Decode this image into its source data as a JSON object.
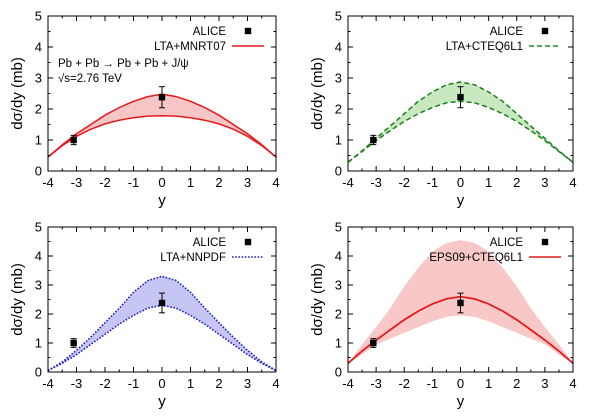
{
  "chart_data": [
    {
      "type": "line",
      "xlabel": "y",
      "ylabel": "dσ/dy (mb)",
      "xlim": [
        -4,
        4
      ],
      "ylim": [
        0,
        5
      ],
      "xticks": [
        "-4",
        "-3",
        "-2",
        "-1",
        "0",
        "1",
        "2",
        "3",
        "4"
      ],
      "yticks": [
        "0",
        "1",
        "2",
        "3",
        "4",
        "5"
      ],
      "legend_position": "top-right",
      "legend": [
        {
          "label": "ALICE",
          "kind": "marker",
          "color": "#000000"
        },
        {
          "label": "LTA+MNRT07",
          "kind": "solid",
          "color": "#e41a1c"
        }
      ],
      "annotations": [
        "Pb + Pb → Pb + Pb + J/ψ",
        "√s=2.76 TeV"
      ],
      "data_points": {
        "name": "ALICE",
        "x": [
          -3.1,
          0
        ],
        "y": [
          1.0,
          2.38
        ],
        "yerr": [
          0.15,
          0.34
        ]
      },
      "band": {
        "style": "solid",
        "color": "#e41a1c",
        "fill": "#f6c6c6",
        "x": [
          -4,
          -3.5,
          -3,
          -2.5,
          -2,
          -1.5,
          -1,
          -0.5,
          0,
          0.5,
          1,
          1.5,
          2,
          2.5,
          3,
          3.5,
          4
        ],
        "lower": [
          0.45,
          0.82,
          1.12,
          1.35,
          1.52,
          1.64,
          1.72,
          1.77,
          1.78,
          1.77,
          1.72,
          1.64,
          1.52,
          1.35,
          1.12,
          0.82,
          0.45
        ],
        "upper": [
          0.45,
          0.85,
          1.2,
          1.5,
          1.8,
          2.05,
          2.25,
          2.4,
          2.48,
          2.4,
          2.25,
          2.05,
          1.8,
          1.5,
          1.2,
          0.85,
          0.45
        ]
      }
    },
    {
      "type": "line",
      "xlabel": "y",
      "ylabel": "dσ/dy (mb)",
      "xlim": [
        -4,
        4
      ],
      "ylim": [
        0,
        5
      ],
      "xticks": [
        "-4",
        "-3",
        "-2",
        "-1",
        "0",
        "1",
        "2",
        "3",
        "4"
      ],
      "yticks": [
        "0",
        "1",
        "2",
        "3",
        "4",
        "5"
      ],
      "legend_position": "top-right",
      "legend": [
        {
          "label": "ALICE",
          "kind": "marker",
          "color": "#000000"
        },
        {
          "label": "LTA+CTEQ6L1",
          "kind": "dashed",
          "color": "#228b22"
        }
      ],
      "annotations": [],
      "data_points": {
        "name": "ALICE",
        "x": [
          -3.1,
          0
        ],
        "y": [
          1.0,
          2.38
        ],
        "yerr": [
          0.15,
          0.34
        ]
      },
      "band": {
        "style": "dashed",
        "color": "#1a7f1a",
        "fill": "#c8e8c0",
        "x": [
          -4,
          -3.5,
          -3,
          -2.5,
          -2,
          -1.5,
          -1,
          -0.5,
          0,
          0.5,
          1,
          1.5,
          2,
          2.5,
          3,
          3.5,
          4
        ],
        "lower": [
          0.28,
          0.63,
          0.98,
          1.3,
          1.6,
          1.85,
          2.05,
          2.2,
          2.25,
          2.2,
          2.05,
          1.85,
          1.6,
          1.3,
          0.98,
          0.63,
          0.28
        ],
        "upper": [
          0.28,
          0.65,
          1.05,
          1.45,
          1.85,
          2.25,
          2.55,
          2.78,
          2.87,
          2.78,
          2.55,
          2.25,
          1.85,
          1.45,
          1.05,
          0.65,
          0.28
        ]
      }
    },
    {
      "type": "line",
      "xlabel": "y",
      "ylabel": "dσ/dy (mb)",
      "xlim": [
        -4,
        4
      ],
      "ylim": [
        0,
        5
      ],
      "xticks": [
        "-4",
        "-3",
        "-2",
        "-1",
        "0",
        "1",
        "2",
        "3",
        "4"
      ],
      "yticks": [
        "0",
        "1",
        "2",
        "3",
        "4",
        "5"
      ],
      "legend_position": "top-right",
      "legend": [
        {
          "label": "ALICE",
          "kind": "marker",
          "color": "#000000"
        },
        {
          "label": "LTA+NNPDF",
          "kind": "dotted",
          "color": "#1f1fbf"
        }
      ],
      "annotations": [],
      "data_points": {
        "name": "ALICE",
        "x": [
          -3.1,
          0
        ],
        "y": [
          1.0,
          2.38
        ],
        "yerr": [
          0.15,
          0.34
        ]
      },
      "band": {
        "style": "dotted",
        "color": "#1f1fbf",
        "fill": "#c6c6f4",
        "x": [
          -4,
          -3.5,
          -3,
          -2.5,
          -2,
          -1.5,
          -1,
          -0.5,
          0,
          0.5,
          1,
          1.5,
          2,
          2.5,
          3,
          3.5,
          4
        ],
        "lower": [
          0.05,
          0.3,
          0.6,
          0.95,
          1.3,
          1.65,
          1.95,
          2.2,
          2.3,
          2.2,
          1.95,
          1.65,
          1.3,
          0.95,
          0.6,
          0.3,
          0.05
        ],
        "upper": [
          0.05,
          0.35,
          0.75,
          1.2,
          1.7,
          2.2,
          2.75,
          3.15,
          3.3,
          3.15,
          2.75,
          2.2,
          1.7,
          1.2,
          0.75,
          0.35,
          0.05
        ]
      }
    },
    {
      "type": "line",
      "xlabel": "y",
      "ylabel": "dσ/dy (mb)",
      "xlim": [
        -4,
        4
      ],
      "ylim": [
        0,
        5
      ],
      "xticks": [
        "-4",
        "-3",
        "-2",
        "-1",
        "0",
        "1",
        "2",
        "3",
        "4"
      ],
      "yticks": [
        "0",
        "1",
        "2",
        "3",
        "4",
        "5"
      ],
      "legend_position": "top-right",
      "legend": [
        {
          "label": "ALICE",
          "kind": "marker",
          "color": "#000000"
        },
        {
          "label": "EPS09+CTEQ6L1",
          "kind": "solid",
          "color": "#e41a1c"
        }
      ],
      "annotations": [],
      "data_points": {
        "name": "ALICE",
        "x": [
          -3.1,
          0
        ],
        "y": [
          1.0,
          2.38
        ],
        "yerr": [
          0.15,
          0.34
        ]
      },
      "band": {
        "style": "none",
        "color": "#e41a1c",
        "fill": "#f8c8c8",
        "x": [
          -4,
          -3.5,
          -3,
          -2.5,
          -2,
          -1.5,
          -1,
          -0.5,
          0,
          0.5,
          1,
          1.5,
          2,
          2.5,
          3,
          3.5,
          4
        ],
        "lower": [
          0.3,
          0.6,
          0.95,
          1.15,
          1.35,
          1.55,
          1.75,
          1.9,
          1.95,
          1.9,
          1.75,
          1.55,
          1.35,
          1.15,
          0.95,
          0.6,
          0.3
        ],
        "upper": [
          0.3,
          0.95,
          1.55,
          2.2,
          2.95,
          3.6,
          4.15,
          4.45,
          4.55,
          4.45,
          4.15,
          3.6,
          2.95,
          2.2,
          1.55,
          0.95,
          0.3
        ]
      },
      "central_line": {
        "color": "#e41a1c",
        "x": [
          -4,
          -3.5,
          -3,
          -2.5,
          -2,
          -1.5,
          -1,
          -0.5,
          0,
          0.5,
          1,
          1.5,
          2,
          2.5,
          3,
          3.5,
          4
        ],
        "y": [
          0.3,
          0.72,
          1.1,
          1.45,
          1.8,
          2.1,
          2.35,
          2.52,
          2.6,
          2.52,
          2.35,
          2.1,
          1.8,
          1.45,
          1.1,
          0.72,
          0.3
        ]
      }
    }
  ]
}
